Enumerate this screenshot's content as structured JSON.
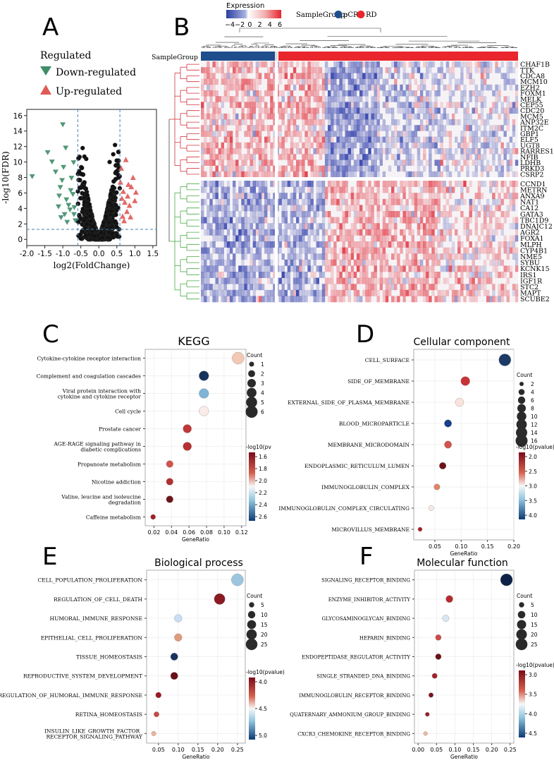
{
  "panels": {
    "a": "A",
    "b": "B",
    "c": "C",
    "d": "D",
    "e": "E",
    "f": "F"
  },
  "legend_a": {
    "title": "Regulated",
    "down": "Down-regulated",
    "up": "Up-regulated",
    "down_color": "#3e8d68",
    "up_color": "#e05a55"
  },
  "chart_data": [
    {
      "type": "scatter",
      "panel": "A",
      "xlabel": "log2(FoldChange)",
      "ylabel": "-log10(FDR)",
      "xlim": [
        -2.0,
        1.6
      ],
      "ylim": [
        -0.8,
        16.8
      ],
      "xticks": [
        "-2.0",
        "-1.5",
        "-1.0",
        "-0.5",
        "0.0",
        "0.5",
        "1.0",
        "1.5"
      ],
      "yticks": [
        "0",
        "2",
        "4",
        "6",
        "8",
        "10",
        "12",
        "14",
        "16"
      ],
      "thresholds": {
        "x": [
          -0.585,
          0.585
        ],
        "y": 1.3
      },
      "series": [
        {
          "name": "Down-regulated",
          "color": "#3e8d68",
          "points": [
            [
              -1.85,
              8.1
            ],
            [
              -1.42,
              11.2
            ],
            [
              -1.3,
              10.0
            ],
            [
              -1.2,
              8.7
            ],
            [
              -1.0,
              14.8
            ],
            [
              -1.02,
              7.6
            ],
            [
              -1.07,
              6.7
            ],
            [
              -1.1,
              5.6
            ],
            [
              -0.98,
              9.3
            ],
            [
              -0.92,
              11.8
            ],
            [
              -0.9,
              5.1
            ],
            [
              -0.84,
              4.4
            ],
            [
              -0.8,
              3.8
            ],
            [
              -0.95,
              3.2
            ],
            [
              -0.76,
              7.9
            ],
            [
              -0.72,
              5.8
            ],
            [
              -0.7,
              9.9
            ],
            [
              -0.68,
              4.1
            ],
            [
              -0.65,
              2.4
            ],
            [
              -0.88,
              2.2
            ],
            [
              -1.12,
              4.2
            ],
            [
              -0.78,
              6.3
            ],
            [
              -0.69,
              3.2
            ],
            [
              -1.05,
              2.8
            ]
          ]
        },
        {
          "name": "Up-regulated",
          "color": "#e05a55",
          "points": [
            [
              0.62,
              9.2
            ],
            [
              0.68,
              6.2
            ],
            [
              0.72,
              4.8
            ],
            [
              0.75,
              10.3
            ],
            [
              0.8,
              5.6
            ],
            [
              0.85,
              4.4
            ],
            [
              0.9,
              6.8
            ],
            [
              0.95,
              8.0
            ],
            [
              1.0,
              5.0
            ],
            [
              1.03,
              6.1
            ],
            [
              0.66,
              3.0
            ],
            [
              0.7,
              2.4
            ],
            [
              0.78,
              3.6
            ],
            [
              0.88,
              2.9
            ],
            [
              0.6,
              7.4
            ],
            [
              0.82,
              7.1
            ],
            [
              0.64,
              5.3
            ]
          ]
        }
      ]
    },
    {
      "type": "heatmap",
      "panel": "B",
      "legend_title": "Expression",
      "legend_ticks": [
        "−4",
        "−2",
        "0",
        "2",
        "4",
        "6"
      ],
      "sample_label": "SampleGroup:",
      "group_annotation": "SampleGroup",
      "groups": [
        {
          "name": "pCR",
          "color": "#1f4e8c"
        },
        {
          "name": "RD",
          "color": "#e8262c"
        }
      ],
      "genes_top": [
        "CHAF1B",
        "TTK",
        "CDCA8",
        "MCM10",
        "EZH2",
        "FOXM1",
        "MELK",
        "CEP55",
        "CDC20",
        "MCM5",
        "ANP32E",
        "ITM2C",
        "GBP1",
        "ELF5",
        "UGT8",
        "RARRES1",
        "NFIB",
        "LDHB",
        "PRKD3",
        "CSRP2"
      ],
      "genes_bottom": [
        "CCND1",
        "METRN",
        "ANXA9",
        "NAT1",
        "CA12",
        "GATA3",
        "TBC1D9",
        "DNAJC12",
        "AGR2",
        "FOXA1",
        "MLPH",
        "CYP4B1",
        "NME5",
        "SYBU",
        "KCNK15",
        "IRS1",
        "IGF1R",
        "STC2",
        "MAPT",
        "SCUBE2"
      ]
    },
    {
      "type": "scatter",
      "panel": "C",
      "title": "KEGG",
      "xlabel": "GeneRatio",
      "xlim": [
        0.01,
        0.125
      ],
      "xticks": [
        "0.02",
        "0.04",
        "0.06",
        "0.08",
        "0.10",
        "0.12"
      ],
      "count_title": "Count",
      "count_ticks": [
        "1",
        "2",
        "3",
        "4",
        "5",
        "6"
      ],
      "color_title": "-log10(pv",
      "color_ticks": [
        "1.6",
        "1.8",
        "2.0",
        "2.2",
        "2.4",
        "2.6"
      ],
      "terms": [
        {
          "label": "Cytokine-cytokine receptor interaction",
          "x": 0.116,
          "count": 6,
          "color": "#f3c9b5"
        },
        {
          "label": "Complement and coagulation cascades",
          "x": 0.077,
          "count": 4,
          "color": "#17335d"
        },
        {
          "label": "Viral protein interaction with\ncytokine and cytokine receptor",
          "x": 0.077,
          "count": 4,
          "color": "#7fb4d8"
        },
        {
          "label": "Cell cycle",
          "x": 0.077,
          "count": 4,
          "color": "#fbecea"
        },
        {
          "label": "Prostate cancer",
          "x": 0.058,
          "count": 3,
          "color": "#c13637"
        },
        {
          "label": "AGE-RAGE signaling pathway in\ndiabetic complications",
          "x": 0.058,
          "count": 3,
          "color": "#b82f31"
        },
        {
          "label": "Propanoate metabolism",
          "x": 0.038,
          "count": 2,
          "color": "#d4534a"
        },
        {
          "label": "Nicotine addiction",
          "x": 0.038,
          "count": 2,
          "color": "#b2302f"
        },
        {
          "label": "Valine, leucine and isoleucine\ndegradation",
          "x": 0.038,
          "count": 2,
          "color": "#6e1418"
        },
        {
          "label": "Caffeine metabolism",
          "x": 0.019,
          "count": 1,
          "color": "#a21c24"
        }
      ]
    },
    {
      "type": "scatter",
      "panel": "D",
      "title": "Cellular component",
      "xlabel": "GeneRatio",
      "xlim": [
        0.01,
        0.2
      ],
      "xticks": [
        "0.05",
        "0.10",
        "0.15",
        "0.20"
      ],
      "count_title": "Count",
      "count_ticks": [
        "2",
        "4",
        "6",
        "8",
        "10",
        "12",
        "14",
        "16"
      ],
      "color_title": "-log10(pvalue)",
      "color_ticks": [
        "2.0",
        "2.5",
        "3.0",
        "3.5",
        "4.0"
      ],
      "terms": [
        {
          "label": "CELL_SURFACE",
          "x": 0.183,
          "count": 16,
          "color": "#1d3a66"
        },
        {
          "label": "SIDE_OF_MEMBRANE",
          "x": 0.108,
          "count": 9,
          "color": "#c83236"
        },
        {
          "label": "EXTERNAL_SIDE_OF_PLASMA_MEMBRANE",
          "x": 0.097,
          "count": 8,
          "color": "#fae3dc"
        },
        {
          "label": "BLOOD_MICROPARTICLE",
          "x": 0.075,
          "count": 6,
          "color": "#16408a"
        },
        {
          "label": "MEMBRANE_MICRODOMAIN",
          "x": 0.075,
          "count": 6,
          "color": "#d0554b"
        },
        {
          "label": "ENDOPLASMIC_RETICULUM_LUMEN",
          "x": 0.065,
          "count": 5,
          "color": "#6d1219"
        },
        {
          "label": "IMMUNOGLOBULIN_COMPLEX",
          "x": 0.054,
          "count": 4,
          "color": "#e08266"
        },
        {
          "label": "IMMUNOGLOBULIN_COMPLEX_CIRCULATING",
          "x": 0.043,
          "count": 3,
          "color": "#f6e9e6"
        },
        {
          "label": "MICROVILLUS_MEMBRANE",
          "x": 0.022,
          "count": 2,
          "color": "#a72028"
        }
      ]
    },
    {
      "type": "scatter",
      "panel": "E",
      "title": "Biological process",
      "xlabel": "GeneRatio",
      "xlim": [
        0.02,
        0.27
      ],
      "xticks": [
        "0.05",
        "0.10",
        "0.15",
        "0.20",
        "0.25"
      ],
      "count_title": "Count",
      "count_ticks": [
        "5",
        "10",
        "15",
        "20",
        "25"
      ],
      "color_title": "-log10(pvalue)",
      "color_ticks": [
        "4.0",
        "4.5",
        "5.0"
      ],
      "terms": [
        {
          "label": "CELL_POPULATION_PROLIFERATION",
          "x": 0.25,
          "count": 27,
          "color": "#9cc6df"
        },
        {
          "label": "REGULATION_OF_CELL_DEATH",
          "x": 0.205,
          "count": 22,
          "color": "#8b1a22"
        },
        {
          "label": "HUMORAL_IMMUNE_RESPONSE",
          "x": 0.1,
          "count": 11,
          "color": "#c9def0"
        },
        {
          "label": "EPITHELIAL_CELL_PROLIFERATION",
          "x": 0.1,
          "count": 11,
          "color": "#e09a7c"
        },
        {
          "label": "TISSUE_HOMEOSTASIS",
          "x": 0.09,
          "count": 10,
          "color": "#1b3260"
        },
        {
          "label": "REPRODUCTIVE_SYSTEM_DEVELOPMENT",
          "x": 0.09,
          "count": 10,
          "color": "#6b1018"
        },
        {
          "label": "REGULATION_OF_HUMORAL_IMMUNE_RESPONSE",
          "x": 0.05,
          "count": 6,
          "color": "#9a1a22"
        },
        {
          "label": "RETINA_HOMEOSTASIS",
          "x": 0.045,
          "count": 5,
          "color": "#c44a45"
        },
        {
          "label": "INSULIN_LIKE_GROWTH_FACTOR_\nRECEPTOR_SIGNALING_PATHWAY",
          "x": 0.038,
          "count": 4,
          "color": "#ecb39b"
        }
      ]
    },
    {
      "type": "scatter",
      "panel": "F",
      "title": "Molecular function",
      "xlabel": "GeneRatio",
      "xlim": [
        -0.01,
        0.26
      ],
      "xticks": [
        "0.00",
        "0.05",
        "0.10",
        "0.15",
        "0.20",
        "0.25"
      ],
      "count_title": "Count",
      "count_ticks": [
        "5",
        "10",
        "15",
        "20",
        "25"
      ],
      "color_title": "-log10(pvalue)",
      "color_ticks": [
        "3.0",
        "3.5",
        "4.0",
        "4.5"
      ],
      "terms": [
        {
          "label": "SIGNALING_RECEPTOR_BINDING",
          "x": 0.24,
          "count": 26,
          "color": "#0e2247"
        },
        {
          "label": "ENZYME_INHIBITOR_ACTIVITY",
          "x": 0.085,
          "count": 9,
          "color": "#b52a2f"
        },
        {
          "label": "GLYCOSAMINOGLYCAN_BINDING",
          "x": 0.075,
          "count": 8,
          "color": "#d8e7f3"
        },
        {
          "label": "HEPARIN_BINDING",
          "x": 0.055,
          "count": 6,
          "color": "#cd4a45"
        },
        {
          "label": "ENDOPEPTIDASE_REGULATOR_ACTIVITY",
          "x": 0.055,
          "count": 6,
          "color": "#6d1018"
        },
        {
          "label": "SINGLE_STRANDED_DNA_BINDING",
          "x": 0.045,
          "count": 5,
          "color": "#a1232a"
        },
        {
          "label": "IMMUNOGLOBULIN_RECEPTOR_BINDING",
          "x": 0.035,
          "count": 4,
          "color": "#7a121b"
        },
        {
          "label": "QUATERNARY_AMMONIUM_GROUP_BINDING",
          "x": 0.025,
          "count": 3,
          "color": "#9a1d25"
        },
        {
          "label": "CXCR3_CHEMOKINE_RECEPTOR_BINDING",
          "x": 0.02,
          "count": 3,
          "color": "#edb9a3"
        }
      ]
    }
  ]
}
